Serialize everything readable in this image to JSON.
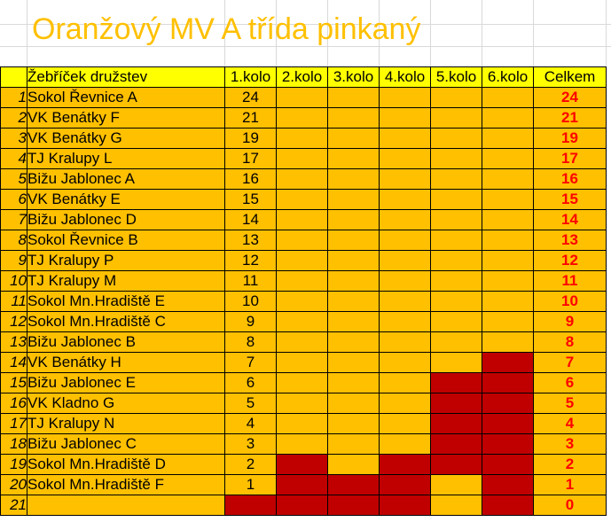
{
  "title": "Oranžový MV A třída pinkaný",
  "header": {
    "team": "Žebříček družstev",
    "rounds": [
      "1.kolo",
      "2.kolo",
      "3.kolo",
      "4.kolo",
      "5.kolo",
      "6.kolo"
    ],
    "total": "Celkem"
  },
  "colors": {
    "cell_fill": "#ffc000",
    "header_fill": "#ffff00",
    "empty_slot_fill": "#c00000",
    "title_color": "#ffc000",
    "total_color": "#ff0000"
  },
  "rows": [
    {
      "n": "1",
      "team": "Sokol Řevnice A",
      "r1": "24",
      "total": "24"
    },
    {
      "n": "2",
      "team": "VK Benátky F",
      "r1": "21",
      "total": "21"
    },
    {
      "n": "3",
      "team": "VK Benátky G",
      "r1": "19",
      "total": "19"
    },
    {
      "n": "4",
      "team": "TJ Kralupy L",
      "r1": "17",
      "total": "17"
    },
    {
      "n": "5",
      "team": "Bižu Jablonec A",
      "r1": "16",
      "total": "16"
    },
    {
      "n": "6",
      "team": "VK Benátky E",
      "r1": "15",
      "total": "15"
    },
    {
      "n": "7",
      "team": "Bižu Jablonec D",
      "r1": "14",
      "total": "14"
    },
    {
      "n": "8",
      "team": "Sokol Řevnice B",
      "r1": "13",
      "total": "13"
    },
    {
      "n": "9",
      "team": "TJ Kralupy P",
      "r1": "12",
      "total": "12"
    },
    {
      "n": "10",
      "team": "TJ Kralupy M",
      "r1": "11",
      "total": "11"
    },
    {
      "n": "11",
      "team": "Sokol Mn.Hradiště E",
      "r1": "10",
      "total": "10"
    },
    {
      "n": "12",
      "team": "Sokol Mn.Hradiště C",
      "r1": "9",
      "total": "9"
    },
    {
      "n": "13",
      "team": "Bižu Jablonec B",
      "r1": "8",
      "total": "8"
    },
    {
      "n": "14",
      "team": "VK Benátky H",
      "r1": "7",
      "total": "7"
    },
    {
      "n": "15",
      "team": "Bižu Jablonec E",
      "r1": "6",
      "total": "6"
    },
    {
      "n": "16",
      "team": "VK Kladno G",
      "r1": "5",
      "total": "5"
    },
    {
      "n": "17",
      "team": "TJ Kralupy N",
      "r1": "4",
      "total": "4"
    },
    {
      "n": "18",
      "team": "Bižu Jablonec C",
      "r1": "3",
      "total": "3"
    },
    {
      "n": "19",
      "team": "Sokol Mn.Hradiště D",
      "r1": "2",
      "total": "2"
    },
    {
      "n": "20",
      "team": "Sokol Mn.Hradiště F",
      "r1": "1",
      "total": "1"
    },
    {
      "n": "21",
      "team": "",
      "r1": "",
      "total": "0"
    }
  ]
}
